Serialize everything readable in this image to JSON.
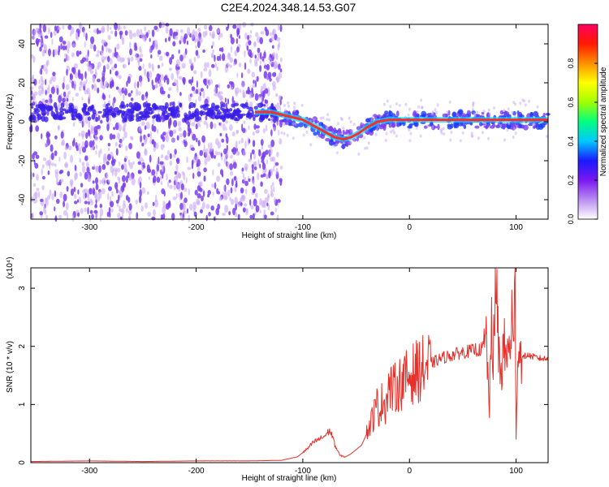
{
  "title": "C2E4.2024.348.14.53.G07",
  "colors": {
    "snr_line": "#e8302a",
    "ridge": "#ff2a2a",
    "scatter_primary": "#7a3cf0",
    "scatter_light": "#c9a8f5"
  },
  "chart_data": [
    {
      "type": "heatmap",
      "name": "spectrogram",
      "xlabel": "Height of straight line (km)",
      "ylabel": "Frequency (Hz)",
      "xlim": [
        -355,
        130
      ],
      "ylim": [
        -50,
        50
      ],
      "x_ticks": [
        -300,
        -200,
        -100,
        0,
        100
      ],
      "y_ticks": [
        -40,
        -20,
        0,
        20,
        40
      ],
      "ridge": {
        "x": [
          -145,
          -130,
          -115,
          -100,
          -90,
          -80,
          -70,
          -62,
          -55,
          -48,
          -40,
          -30,
          -20,
          -10,
          0,
          20,
          40,
          60,
          75,
          90,
          100,
          130
        ],
        "y": [
          5,
          5,
          3,
          1,
          -2,
          -5,
          -8,
          -9,
          -8,
          -6,
          -3,
          0,
          1,
          1,
          1,
          1,
          1,
          1,
          1,
          1,
          1,
          1
        ]
      },
      "colorbar": {
        "label": "Normalized spectral amplitude",
        "range": [
          0,
          1
        ],
        "ticks": [
          0.0,
          0.2,
          0.4,
          0.6,
          0.8
        ],
        "colormap": [
          "#ffffff",
          "#b98df0",
          "#7a18f0",
          "#1a1aff",
          "#00c8ff",
          "#00ff80",
          "#a0ff00",
          "#ffff00",
          "#ff9000",
          "#ff1a00",
          "#ff0060"
        ]
      }
    },
    {
      "type": "line",
      "name": "snr",
      "xlabel": "Height of straight line (km)",
      "ylabel": "SNR (10 * v/v)",
      "yscale_label": "(x10⁴)",
      "xlim": [
        -355,
        130
      ],
      "ylim": [
        0,
        3.35
      ],
      "x_ticks": [
        -300,
        -200,
        -100,
        0,
        100
      ],
      "y_ticks": [
        0,
        1,
        2,
        3
      ],
      "series": [
        {
          "x": [
            -355,
            -300,
            -250,
            -200,
            -150,
            -120,
            -105,
            -95,
            -90,
            -80,
            -75,
            -72,
            -70,
            -65,
            -60,
            -55,
            -45,
            -40,
            -35,
            -30,
            -28,
            -25,
            -22,
            -20,
            -15,
            -10,
            -5,
            0,
            10,
            20,
            30,
            40,
            50,
            60,
            62,
            65,
            70,
            72,
            75,
            77,
            78,
            80,
            82,
            85,
            88,
            90,
            92,
            94,
            96,
            98,
            99,
            100,
            101,
            102,
            104,
            106,
            110,
            120,
            130
          ],
          "values": [
            0.02,
            0.03,
            0.02,
            0.03,
            0.03,
            0.04,
            0.1,
            0.25,
            0.35,
            0.45,
            0.55,
            0.45,
            0.3,
            0.12,
            0.1,
            0.15,
            0.3,
            0.5,
            0.75,
            1.0,
            0.9,
            1.1,
            1.0,
            1.3,
            1.25,
            1.35,
            1.4,
            1.5,
            1.6,
            1.7,
            1.8,
            1.85,
            1.9,
            1.93,
            1.95,
            1.92,
            2.0,
            2.1,
            1.0,
            2.2,
            1.6,
            2.9,
            2.6,
            1.5,
            1.9,
            1.95,
            1.8,
            2.0,
            2.5,
            1.8,
            3.3,
            0.55,
            1.5,
            2.0,
            1.85,
            1.8,
            1.85,
            1.8,
            1.78
          ]
        }
      ]
    }
  ]
}
